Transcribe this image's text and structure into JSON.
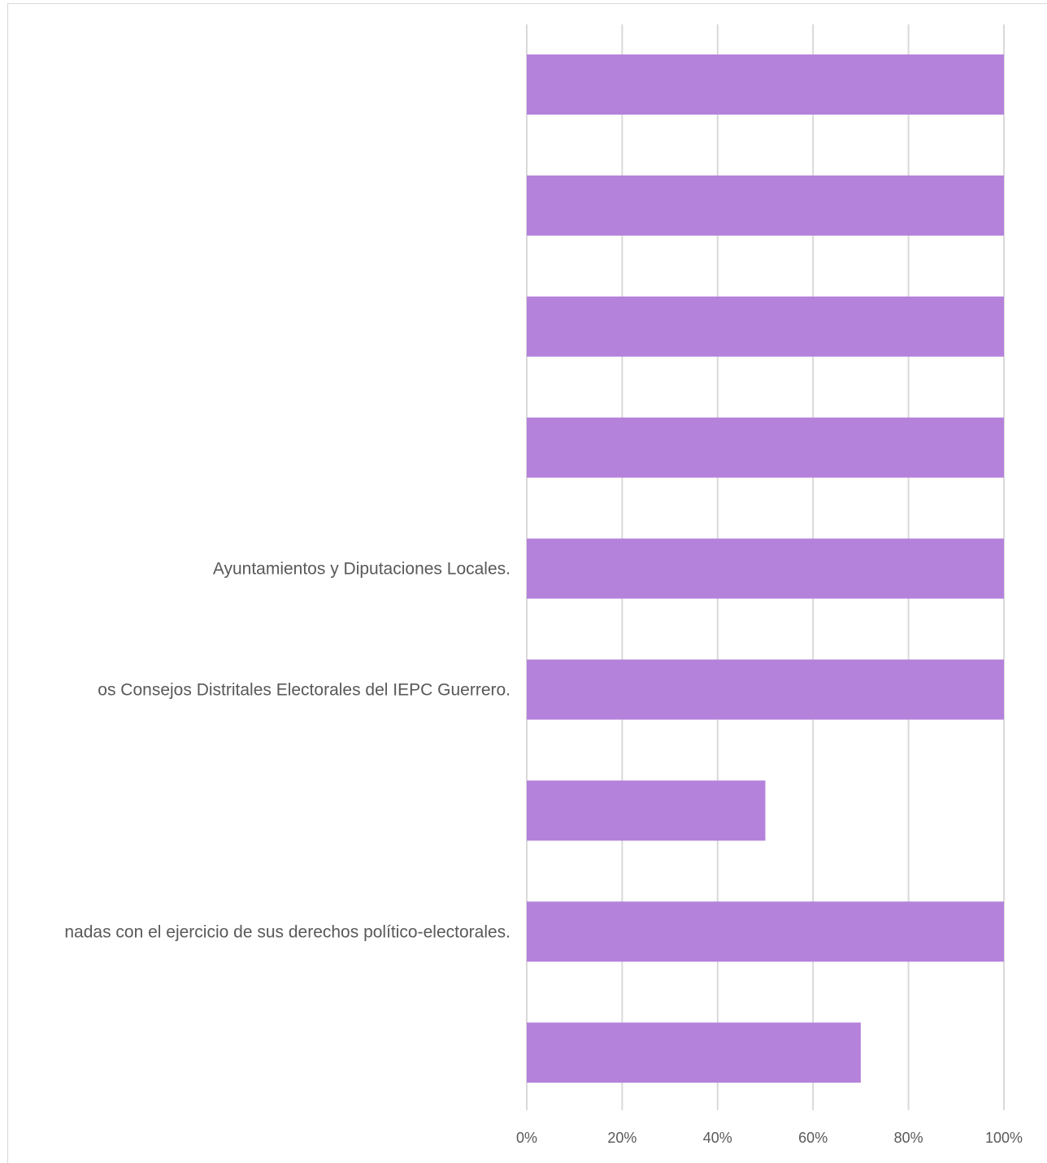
{
  "chart_data": {
    "type": "bar",
    "orientation": "horizontal",
    "categories": [
      "",
      "",
      "",
      "",
      "Ayuntamientos y Diputaciones Locales.",
      "os Consejos Distritales Electorales del IEPC Guerrero.",
      "",
      "nadas con el ejercicio de sus derechos político-electorales.",
      ""
    ],
    "values": [
      100,
      100,
      100,
      100,
      100,
      100,
      50,
      100,
      70
    ],
    "xlim": [
      0,
      100
    ],
    "x_ticks": [
      "0%",
      "20%",
      "40%",
      "60%",
      "80%",
      "100%"
    ],
    "grid": true,
    "bar_color": "#b482db",
    "grid_color": "#d9d9d9",
    "label_color": "#595959",
    "title": "",
    "xlabel": "",
    "ylabel": ""
  }
}
